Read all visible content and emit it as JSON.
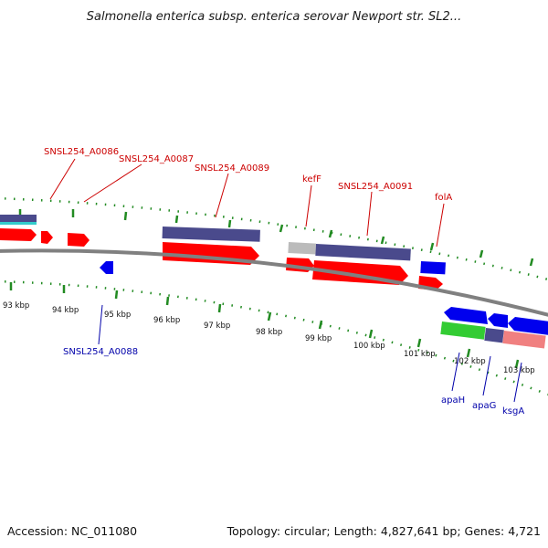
{
  "organism_title": "Salmonella enterica subsp. enterica serovar Newport str. SL2...",
  "footer": {
    "accession": "Accession: NC_011080",
    "summary": "Topology: circular; Length: 4,827,641 bp; Genes: 4,721"
  },
  "colors": {
    "forward_label": "#cc0000",
    "reverse_label": "#0000aa",
    "tick": "#228b22",
    "gene_red": "#ff0000",
    "gene_blue": "#0000ee",
    "gene_purple": "#4a4a8c",
    "gene_gray": "#bbbbbb",
    "gene_green": "#33cc33",
    "gene_pink": "#f08080",
    "gene_cyan": "#33cccc",
    "backbone": "#808080"
  },
  "scale": {
    "ticks": [
      "93 kbp",
      "94 kbp",
      "95 kbp",
      "96 kbp",
      "97 kbp",
      "98 kbp",
      "99 kbp",
      "100 kbp",
      "101 kbp",
      "102 kbp",
      "103 kbp"
    ]
  },
  "forward_labels": [
    "SNSL254_A0086",
    "SNSL254_A0087",
    "SNSL254_A0089",
    "kefF",
    "SNSL254_A0091",
    "folA"
  ],
  "reverse_labels": [
    "SNSL254_A0088",
    "apaH",
    "apaG",
    "ksgA"
  ]
}
